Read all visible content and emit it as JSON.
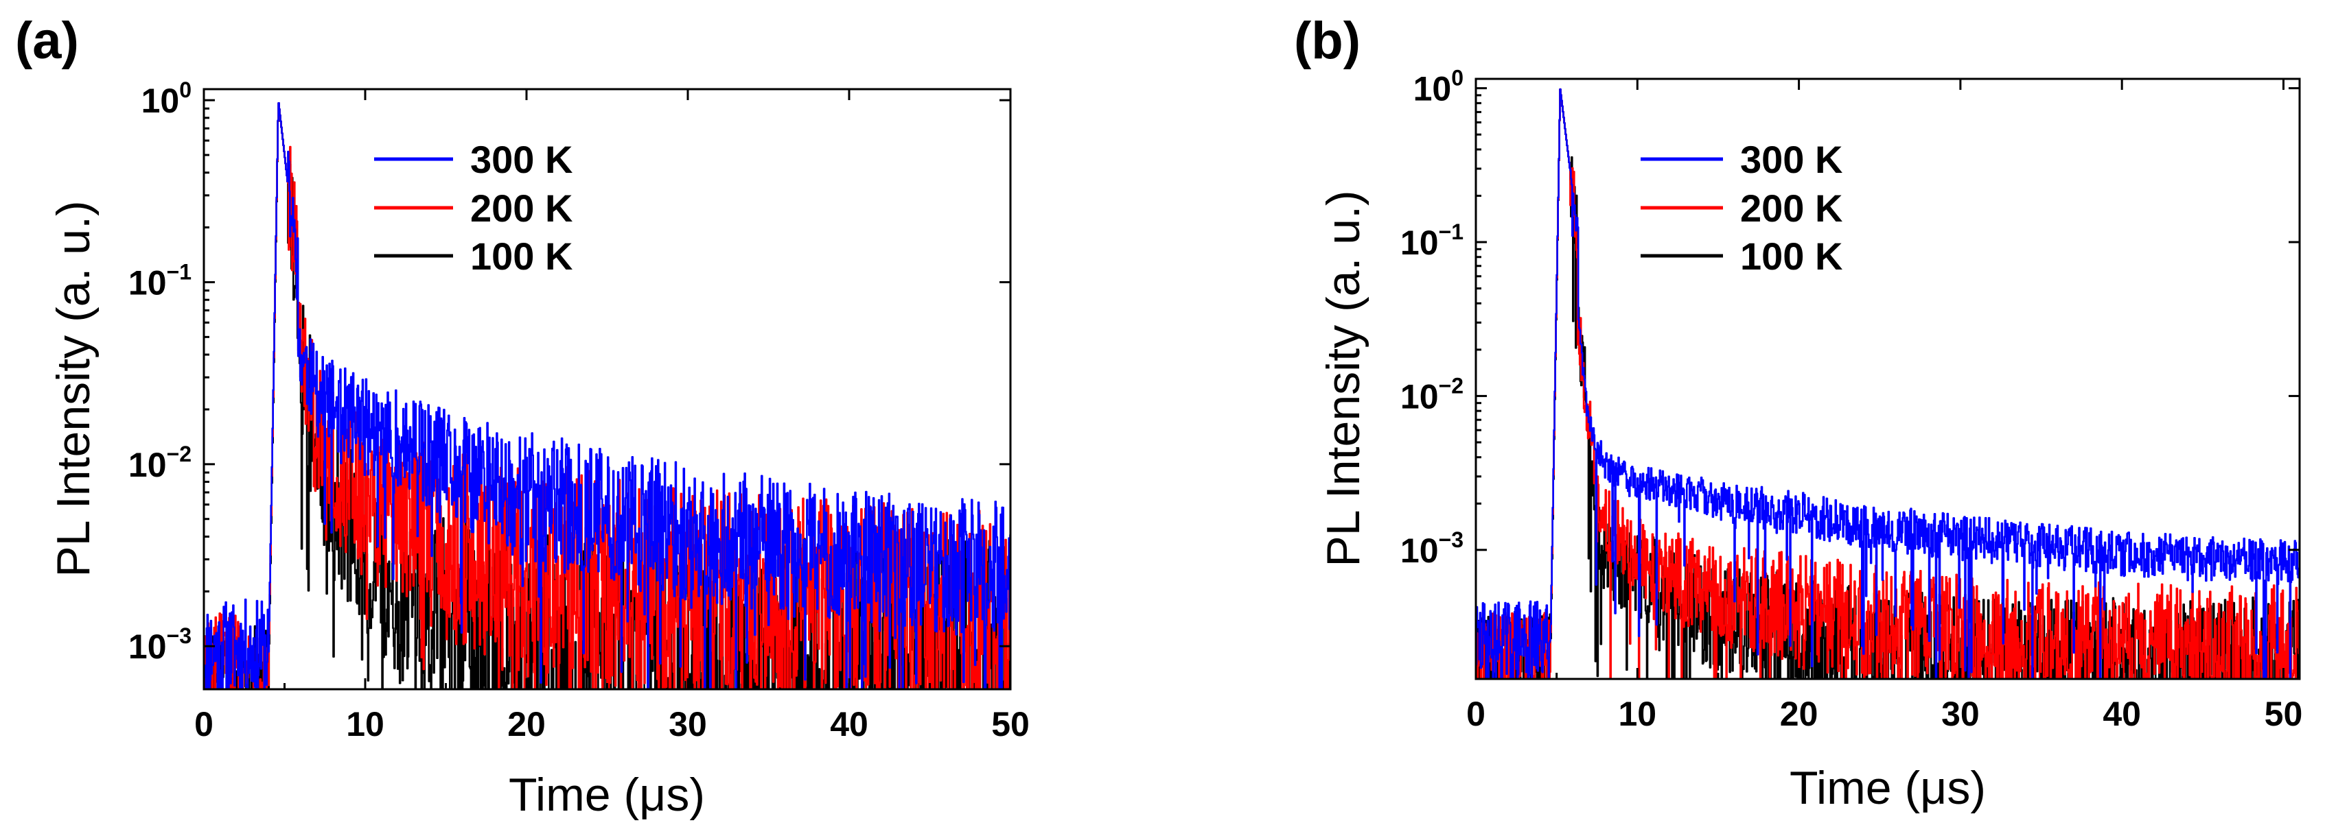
{
  "figure": {
    "panels": [
      "(a)",
      "(b)"
    ]
  },
  "chart_data": [
    {
      "type": "line",
      "panel": "(a)",
      "title": "",
      "xlabel": "Time (μs)",
      "ylabel": "PL Intensity (a. u.)",
      "xlim": [
        0,
        50
      ],
      "ylim": [
        0.00058,
        1.15
      ],
      "yscale": "log",
      "xticks": [
        0,
        10,
        20,
        30,
        40,
        50
      ],
      "yticks": [
        {
          "value": 1,
          "base": "10",
          "exp": "0"
        },
        {
          "value": 0.1,
          "base": "10",
          "exp": "−1"
        },
        {
          "value": 0.01,
          "base": "10",
          "exp": "−2"
        },
        {
          "value": 0.001,
          "base": "10",
          "exp": "−3"
        }
      ],
      "legend_position": "top-center",
      "series": [
        {
          "name": "300 K",
          "color": "#0000ff",
          "pre_level": 0.00095,
          "onset": 4.0,
          "peak_time": 4.6,
          "peak": 1.0,
          "fast_decay": 0.55,
          "slow": [
            [
              5.8,
              0.045
            ],
            [
              7,
              0.024
            ],
            [
              10,
              0.016
            ],
            [
              15,
              0.0095
            ],
            [
              20,
              0.0065
            ],
            [
              25,
              0.0052
            ],
            [
              30,
              0.0042
            ],
            [
              35,
              0.0036
            ],
            [
              40,
              0.0031
            ],
            [
              45,
              0.0028
            ],
            [
              50,
              0.0026
            ]
          ],
          "noise": 0.3
        },
        {
          "name": "200 K",
          "color": "#ff0000",
          "pre_level": 0.0008,
          "onset": 4.0,
          "peak_time": 4.6,
          "peak": 1.0,
          "fast_decay": 0.55,
          "slow": [
            [
              5.8,
              0.045
            ],
            [
              7,
              0.015
            ],
            [
              9,
              0.0075
            ],
            [
              12,
              0.0052
            ],
            [
              15,
              0.0038
            ],
            [
              20,
              0.0026
            ],
            [
              25,
              0.0021
            ],
            [
              30,
              0.0018
            ],
            [
              35,
              0.0016
            ],
            [
              40,
              0.0015
            ],
            [
              45,
              0.0014
            ],
            [
              50,
              0.0013
            ]
          ],
          "noise": 0.5
        },
        {
          "name": "100 K",
          "color": "#000000",
          "pre_level": 0.0007,
          "onset": 4.0,
          "peak_time": 4.6,
          "peak": 1.0,
          "fast_decay": 0.55,
          "slow": [
            [
              5.8,
              0.045
            ],
            [
              7,
              0.012
            ],
            [
              9,
              0.0045
            ],
            [
              12,
              0.0022
            ],
            [
              15,
              0.0013
            ],
            [
              20,
              0.0009
            ],
            [
              25,
              0.0008
            ],
            [
              30,
              0.0008
            ],
            [
              34,
              0.0008
            ]
          ],
          "noise": 0.55
        }
      ]
    },
    {
      "type": "line",
      "panel": "(b)",
      "title": "",
      "xlabel": "Time (μs)",
      "ylabel": "PL Intensity (a. u.)",
      "xlim": [
        0,
        51
      ],
      "ylim": [
        0.000145,
        1.15
      ],
      "yscale": "log",
      "xticks": [
        0,
        10,
        20,
        30,
        40,
        50
      ],
      "yticks": [
        {
          "value": 1,
          "base": "10",
          "exp": "0"
        },
        {
          "value": 0.1,
          "base": "10",
          "exp": "−1"
        },
        {
          "value": 0.01,
          "base": "10",
          "exp": "−2"
        },
        {
          "value": 0.001,
          "base": "10",
          "exp": "−3"
        }
      ],
      "legend_position": "top-center",
      "series": [
        {
          "name": "300 K",
          "color": "#0000ff",
          "pre_level": 0.00025,
          "onset": 4.6,
          "peak_time": 5.2,
          "peak": 1.0,
          "fast_decay": 0.5,
          "slow": [
            [
              6.3,
              0.03
            ],
            [
              7,
              0.0065
            ],
            [
              8,
              0.0035
            ],
            [
              10,
              0.0028
            ],
            [
              15,
              0.0021
            ],
            [
              20,
              0.0017
            ],
            [
              25,
              0.0014
            ],
            [
              30,
              0.0012
            ],
            [
              35,
              0.00105
            ],
            [
              40,
              0.00095
            ],
            [
              45,
              0.00088
            ],
            [
              51,
              0.00082
            ]
          ],
          "noise": 0.12
        },
        {
          "name": "200 K",
          "color": "#ff0000",
          "pre_level": 0.00022,
          "onset": 4.6,
          "peak_time": 5.2,
          "peak": 1.0,
          "fast_decay": 0.5,
          "slow": [
            [
              6.3,
              0.03
            ],
            [
              7,
              0.0065
            ],
            [
              7.5,
              0.0018
            ],
            [
              9,
              0.0011
            ],
            [
              12,
              0.0007
            ],
            [
              15,
              0.00052
            ],
            [
              20,
              0.0004
            ],
            [
              25,
              0.00033
            ],
            [
              30,
              0.00029
            ],
            [
              35,
              0.00027
            ],
            [
              40,
              0.00026
            ],
            [
              45,
              0.00025
            ],
            [
              51,
              0.00025
            ]
          ],
          "noise": 0.3
        },
        {
          "name": "100 K",
          "color": "#000000",
          "pre_level": 0.0002,
          "onset": 4.6,
          "peak_time": 5.2,
          "peak": 1.0,
          "fast_decay": 0.5,
          "slow": [
            [
              6.3,
              0.03
            ],
            [
              7,
              0.006
            ],
            [
              7.5,
              0.0013
            ],
            [
              9,
              0.0008
            ],
            [
              12,
              0.0005
            ],
            [
              15,
              0.00035
            ],
            [
              20,
              0.00025
            ],
            [
              25,
              0.0002
            ],
            [
              30,
              0.00019
            ],
            [
              35,
              0.00018
            ]
          ],
          "noise": 0.35
        }
      ]
    }
  ]
}
